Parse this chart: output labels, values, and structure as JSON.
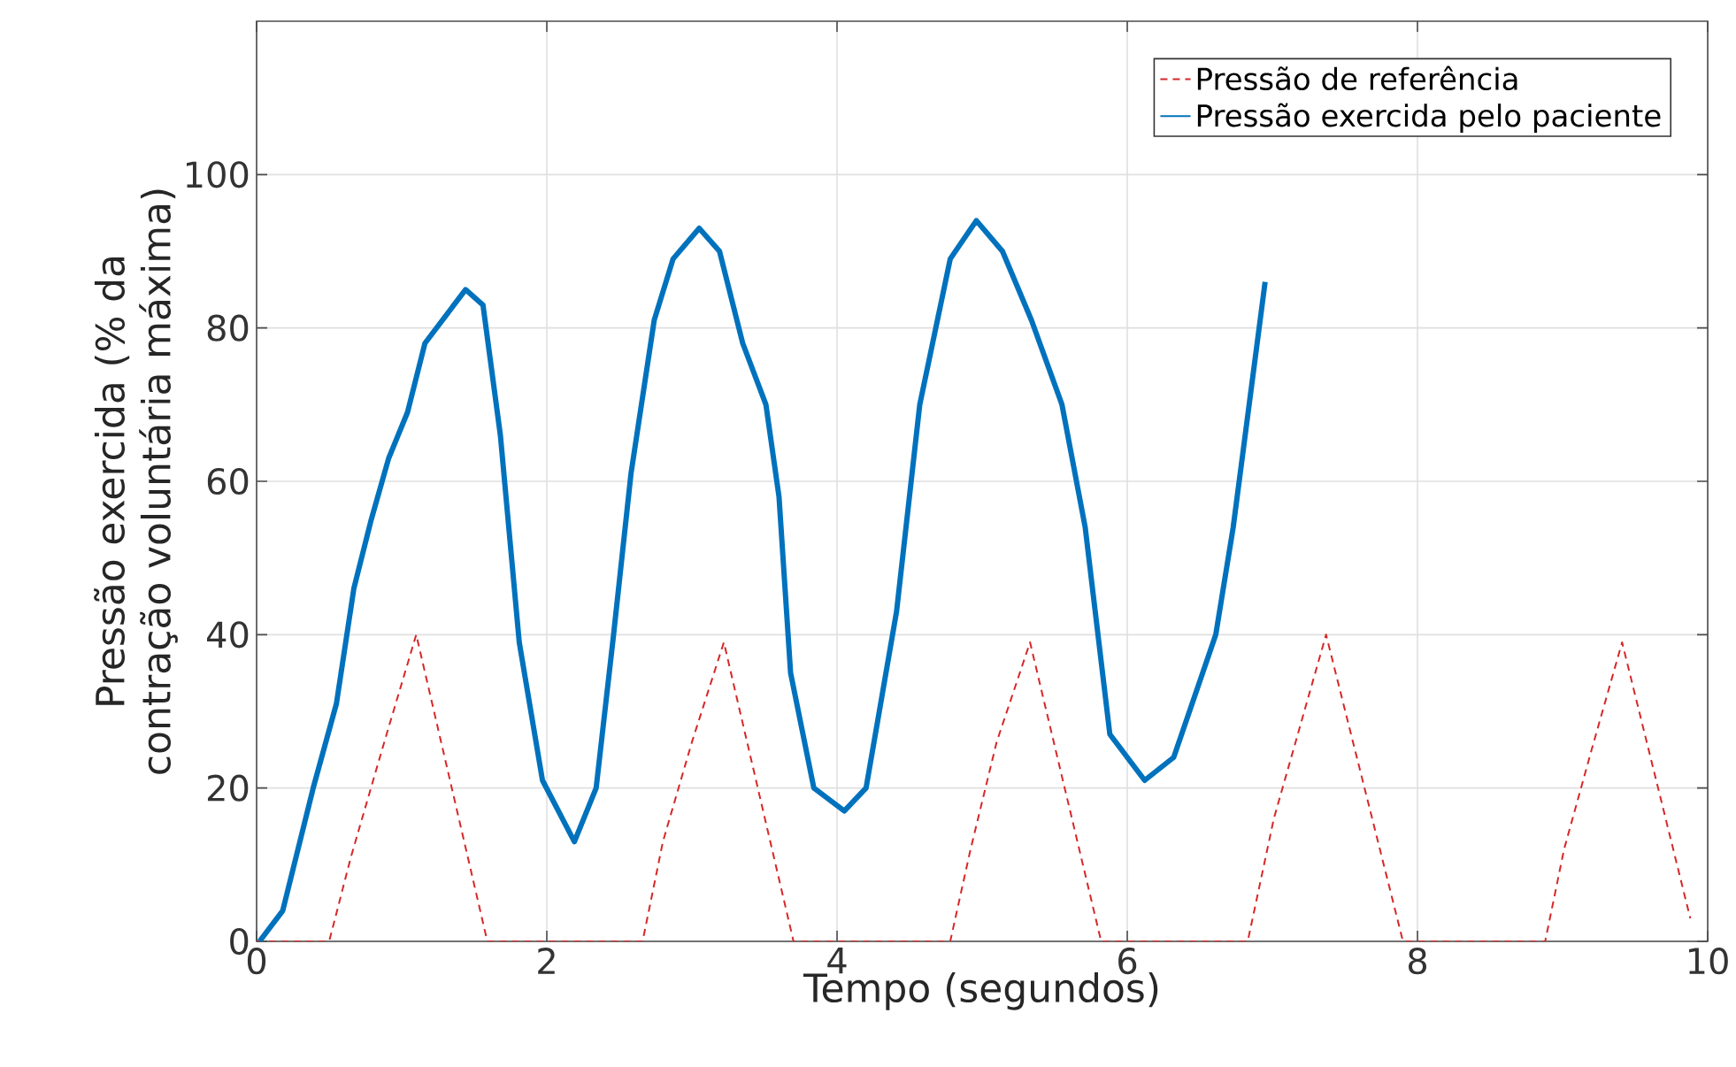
{
  "chart_data": {
    "type": "line",
    "xlabel": "Tempo (segundos)",
    "ylabel": "Pressão exercida (% da contração voluntária máxima)",
    "xlim": [
      0,
      10
    ],
    "ylim": [
      0,
      120
    ],
    "xticks": [
      0,
      2,
      4,
      6,
      8,
      10
    ],
    "yticks": [
      0,
      20,
      40,
      60,
      80,
      100
    ],
    "grid": true,
    "legend": "top right",
    "series": [
      {
        "name": "Pressão de referência",
        "color": "#d62728",
        "line_style": "dashed",
        "x": [
          0,
          0.5,
          0.65,
          0.88,
          1.1,
          1.59,
          2.66,
          2.8,
          3.0,
          3.22,
          3.7,
          4.78,
          4.92,
          5.1,
          5.33,
          5.82,
          6.83,
          7.01,
          7.1,
          7.37,
          7.9,
          8.88,
          9.01,
          9.2,
          9.41,
          9.88
        ],
        "values": [
          0,
          0,
          11,
          26,
          40,
          0,
          0,
          13,
          26,
          39,
          0,
          0,
          12,
          26,
          39,
          0,
          0,
          16,
          22,
          40,
          0,
          0,
          12,
          25,
          39,
          3
        ]
      },
      {
        "name": "Pressão exercida pelo paciente",
        "color": "#0072bd",
        "line_style": "solid",
        "x": [
          0.02,
          0.18,
          0.39,
          0.55,
          0.67,
          0.79,
          0.91,
          1.04,
          1.16,
          1.44,
          1.56,
          1.68,
          1.81,
          1.97,
          2.19,
          2.34,
          2.46,
          2.58,
          2.74,
          2.87,
          3.05,
          3.19,
          3.35,
          3.51,
          3.6,
          3.68,
          3.84,
          4.05,
          4.2,
          4.41,
          4.57,
          4.78,
          4.96,
          5.14,
          5.34,
          5.55,
          5.71,
          5.88,
          6.12,
          6.32,
          6.61,
          6.73,
          6.95
        ],
        "values": [
          0,
          4,
          20,
          31,
          46,
          55,
          63,
          69,
          78,
          85,
          83,
          66,
          39,
          21,
          13,
          20,
          40,
          61,
          81,
          89,
          93,
          90,
          78,
          70,
          58,
          35,
          20,
          17,
          20,
          43,
          70,
          89,
          94,
          90,
          81,
          70,
          54,
          27,
          21,
          24,
          40,
          54,
          86
        ]
      }
    ]
  }
}
